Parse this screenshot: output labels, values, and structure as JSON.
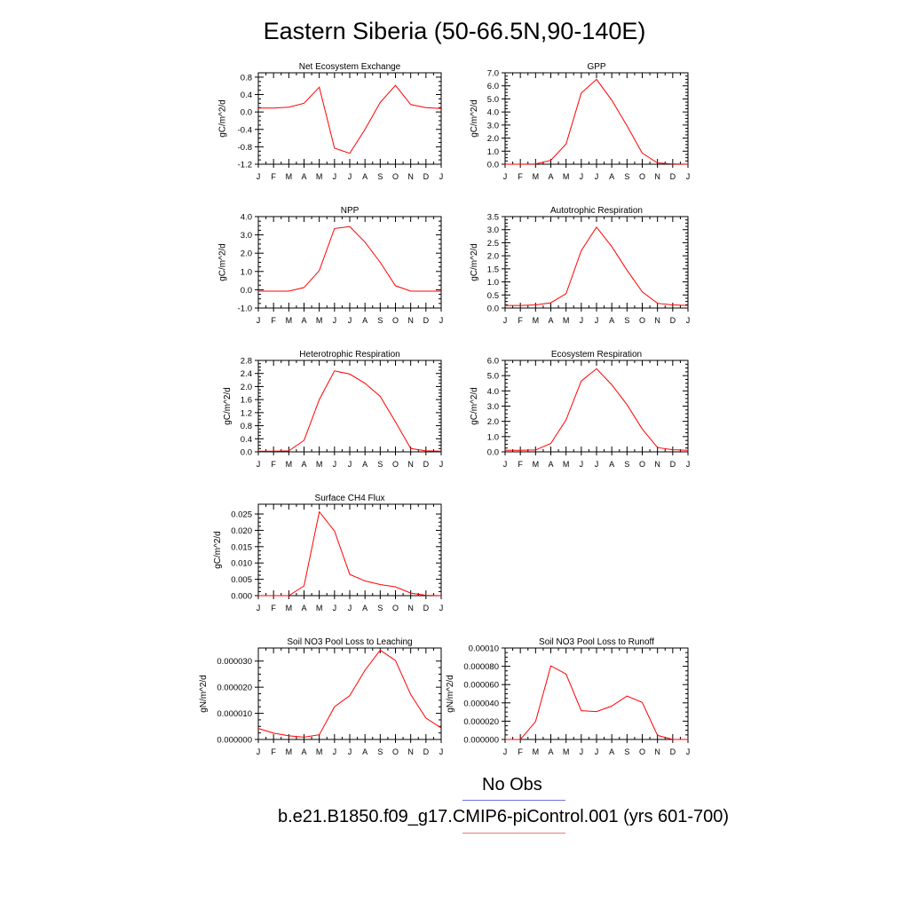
{
  "title": "Eastern Siberia (50-66.5N,90-140E)",
  "legend": {
    "obs_label": "No Obs",
    "case_label": "b.e21.B1850.f09_g17.CMIP6-piControl.001 (yrs 601-700)",
    "obs_color": "#6f6fe8",
    "case_color": "#ee7777"
  },
  "chart_data": [
    {
      "type": "line",
      "title": "Net Ecosystem Exchange",
      "ylabel": "gC/m^2/d",
      "categories": [
        "J",
        "F",
        "M",
        "A",
        "M",
        "J",
        "J",
        "A",
        "S",
        "O",
        "N",
        "D",
        "J"
      ],
      "ylim": [
        -1.2,
        0.9
      ],
      "yticks": [
        -1.2,
        -0.8,
        -0.4,
        0.0,
        0.4,
        0.8
      ],
      "ytick_labels": [
        "-1.2",
        "-0.8",
        "-0.4",
        "0.0",
        "0.4",
        "0.8"
      ],
      "series": [
        {
          "values": [
            0.09,
            0.09,
            0.11,
            0.2,
            0.57,
            -0.83,
            -0.95,
            -0.4,
            0.22,
            0.61,
            0.17,
            0.1,
            0.08
          ],
          "color": "#ff0000"
        }
      ]
    },
    {
      "type": "line",
      "title": "GPP",
      "ylabel": "gC/m^2/d",
      "categories": [
        "J",
        "F",
        "M",
        "A",
        "M",
        "J",
        "J",
        "A",
        "S",
        "O",
        "N",
        "D",
        "J"
      ],
      "ylim": [
        0,
        7
      ],
      "yticks": [
        0,
        1,
        2,
        3,
        4,
        5,
        6,
        7
      ],
      "ytick_labels": [
        "0.0",
        "1.0",
        "2.0",
        "3.0",
        "4.0",
        "5.0",
        "6.0",
        "7.0"
      ],
      "series": [
        {
          "values": [
            0,
            0,
            0.02,
            0.3,
            1.55,
            5.45,
            6.5,
            4.9,
            2.95,
            0.85,
            0.1,
            0.02,
            0
          ],
          "color": "#ff0000"
        }
      ]
    },
    {
      "type": "line",
      "title": "NPP",
      "ylabel": "gC/m^2/d",
      "categories": [
        "J",
        "F",
        "M",
        "A",
        "M",
        "J",
        "J",
        "A",
        "S",
        "O",
        "N",
        "D",
        "J"
      ],
      "ylim": [
        -1,
        4
      ],
      "yticks": [
        -1,
        0,
        1,
        2,
        3,
        4
      ],
      "ytick_labels": [
        "-1.0",
        "0.0",
        "1.0",
        "2.0",
        "3.0",
        "4.0"
      ],
      "series": [
        {
          "values": [
            -0.08,
            -0.08,
            -0.08,
            0.12,
            1.05,
            3.35,
            3.45,
            2.6,
            1.5,
            0.22,
            -0.08,
            -0.08,
            -0.08
          ],
          "color": "#ff0000"
        }
      ]
    },
    {
      "type": "line",
      "title": "Autotrophic Respiration",
      "ylabel": "gC/m^2/d",
      "categories": [
        "J",
        "F",
        "M",
        "A",
        "M",
        "J",
        "J",
        "A",
        "S",
        "O",
        "N",
        "D",
        "J"
      ],
      "ylim": [
        0,
        3.5
      ],
      "yticks": [
        0,
        0.5,
        1,
        1.5,
        2,
        2.5,
        3,
        3.5
      ],
      "ytick_labels": [
        "0.0",
        "0.5",
        "1.0",
        "1.5",
        "2.0",
        "2.5",
        "3.0",
        "3.5"
      ],
      "series": [
        {
          "values": [
            0.1,
            0.1,
            0.12,
            0.2,
            0.55,
            2.2,
            3.1,
            2.35,
            1.45,
            0.62,
            0.18,
            0.12,
            0.1
          ],
          "color": "#ff0000"
        }
      ]
    },
    {
      "type": "line",
      "title": "Heterotrophic Respiration",
      "ylabel": "gC/m^2/d",
      "categories": [
        "J",
        "F",
        "M",
        "A",
        "M",
        "J",
        "J",
        "A",
        "S",
        "O",
        "N",
        "D",
        "J"
      ],
      "ylim": [
        0,
        2.8
      ],
      "yticks": [
        0,
        0.4,
        0.8,
        1.2,
        1.6,
        2.0,
        2.4,
        2.8
      ],
      "ytick_labels": [
        "0.0",
        "0.4",
        "0.8",
        "1.2",
        "1.6",
        "2.0",
        "2.4",
        "2.8"
      ],
      "series": [
        {
          "values": [
            0.02,
            0.02,
            0.03,
            0.35,
            1.6,
            2.48,
            2.38,
            2.1,
            1.7,
            0.92,
            0.1,
            0.03,
            0.02
          ],
          "color": "#ff0000"
        }
      ]
    },
    {
      "type": "line",
      "title": "Ecosystem Respiration",
      "ylabel": "gC/m^2/d",
      "categories": [
        "J",
        "F",
        "M",
        "A",
        "M",
        "J",
        "J",
        "A",
        "S",
        "O",
        "N",
        "D",
        "J"
      ],
      "ylim": [
        0,
        6
      ],
      "yticks": [
        0,
        1,
        2,
        3,
        4,
        5,
        6
      ],
      "ytick_labels": [
        "0.0",
        "1.0",
        "2.0",
        "3.0",
        "4.0",
        "5.0",
        "6.0"
      ],
      "series": [
        {
          "values": [
            0.1,
            0.1,
            0.12,
            0.55,
            2.1,
            4.65,
            5.45,
            4.4,
            3.1,
            1.5,
            0.28,
            0.14,
            0.1
          ],
          "color": "#ff0000"
        }
      ]
    },
    {
      "type": "line",
      "title": "Surface CH4 Flux",
      "ylabel": "gC/m^2/d",
      "categories": [
        "J",
        "F",
        "M",
        "A",
        "M",
        "J",
        "J",
        "A",
        "S",
        "O",
        "N",
        "D",
        "J"
      ],
      "ylim": [
        0,
        0.028
      ],
      "yticks": [
        0,
        0.005,
        0.01,
        0.015,
        0.02,
        0.025
      ],
      "ytick_labels": [
        "0.000",
        "0.005",
        "0.010",
        "0.015",
        "0.020",
        "0.025"
      ],
      "series": [
        {
          "values": [
            0,
            0,
            0,
            0.003,
            0.0257,
            0.0198,
            0.0065,
            0.0045,
            0.0034,
            0.0027,
            0.0008,
            0.0001,
            0
          ],
          "color": "#ff0000"
        }
      ]
    },
    {
      "type": "line",
      "title": "Soil NO3 Pool Loss to Leaching",
      "ylabel": "gN/m^2/d",
      "categories": [
        "J",
        "F",
        "M",
        "A",
        "M",
        "J",
        "J",
        "A",
        "S",
        "O",
        "N",
        "D",
        "J"
      ],
      "ylim": [
        0,
        3.5e-05
      ],
      "yticks": [
        0,
        1e-05,
        2e-05,
        3e-05
      ],
      "ytick_labels": [
        "0.000000",
        "0.000010",
        "0.000020",
        "0.000030"
      ],
      "series": [
        {
          "values": [
            4.2e-06,
            2.4e-06,
            1.4e-06,
            9e-07,
            1.8e-06,
            1.25e-05,
            1.68e-05,
            2.65e-05,
            3.42e-05,
            3.02e-05,
            1.72e-05,
            8.2e-06,
            4.4e-06
          ],
          "color": "#ff0000"
        }
      ]
    },
    {
      "type": "line",
      "title": "Soil NO3 Pool Loss to Runoff",
      "ylabel": "gN/m^2/d",
      "categories": [
        "J",
        "F",
        "M",
        "A",
        "M",
        "J",
        "J",
        "A",
        "S",
        "O",
        "N",
        "D",
        "J"
      ],
      "ylim": [
        0,
        0.0001
      ],
      "yticks": [
        0,
        2e-05,
        4e-05,
        6e-05,
        8e-05,
        0.0001
      ],
      "ytick_labels": [
        "0.000000",
        "0.000020",
        "0.000040",
        "0.000060",
        "0.000080",
        "0.00010"
      ],
      "series": [
        {
          "values": [
            0,
            0,
            1.95e-05,
            8.05e-05,
            7.15e-05,
            3.15e-05,
            3.05e-05,
            3.65e-05,
            4.75e-05,
            4.05e-05,
            4.5e-06,
            0,
            0
          ],
          "color": "#ff0000"
        }
      ]
    }
  ]
}
